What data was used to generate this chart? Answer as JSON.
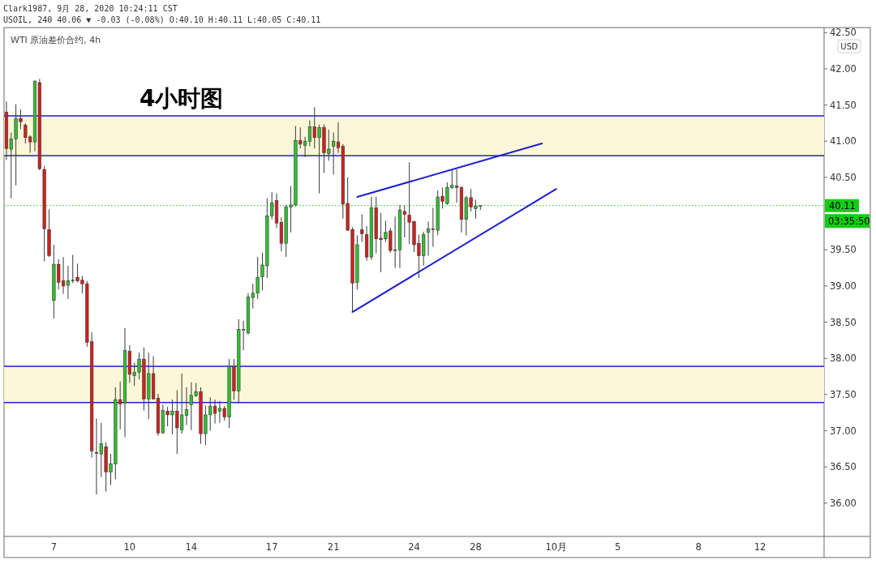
{
  "chart_data": {
    "type": "candlestick",
    "title": "4小时图",
    "subtitle": "WTI 原油差价合约, 4h",
    "ylabel": "USD",
    "annotations": [
      "Clark1987, 9月 28, 2020 10:24:11 CST",
      "USOIL, 240 40.06 ▼ -0.03 (-0.08%) O:40.10 H:40.11 L:40.05 C:40.11",
      "03:35:50"
    ],
    "categories": [
      null,
      null,
      null,
      null,
      null,
      null,
      null,
      null,
      null,
      null,
      "7",
      null,
      null,
      null,
      null,
      null,
      null,
      null,
      null,
      null,
      null,
      null,
      null,
      null,
      null,
      null,
      "10",
      null,
      null,
      null,
      null,
      null,
      null,
      null,
      null,
      null,
      null,
      null,
      null,
      "14",
      null,
      null,
      null,
      null,
      null,
      null,
      null,
      null,
      null,
      null,
      null,
      null,
      null,
      null,
      null,
      null,
      "17",
      null,
      null,
      null,
      null,
      null,
      null,
      null,
      null,
      null,
      null,
      null,
      null,
      "21",
      null,
      null,
      null,
      null,
      null,
      null,
      null,
      null,
      null,
      null,
      null,
      null,
      null,
      null,
      null,
      null,
      "24",
      null,
      null,
      null,
      null,
      null,
      null,
      null,
      null,
      null,
      null,
      null,
      null,
      "28",
      null,
      null,
      null,
      null,
      null,
      null,
      null,
      null,
      null,
      null,
      null,
      null,
      null,
      null,
      null,
      null,
      "10月",
      null,
      null,
      null,
      null,
      null,
      null,
      null,
      null,
      null,
      null,
      null,
      null,
      "5",
      null,
      null,
      null,
      null,
      null,
      null,
      null,
      null,
      null,
      null,
      null,
      null,
      null,
      null,
      null,
      null,
      "8",
      null,
      null,
      null,
      null,
      null,
      null,
      null,
      null,
      null,
      null,
      null,
      null,
      "12",
      null,
      null,
      null,
      null,
      null,
      null,
      null,
      null,
      null,
      null,
      null,
      null,
      null
    ],
    "ohlc": [
      [
        41.4,
        41.55,
        40.74,
        40.9
      ],
      [
        40.89,
        41.12,
        40.21,
        41.03
      ],
      [
        41.03,
        41.51,
        40.39,
        41.31
      ],
      [
        41.31,
        41.44,
        41.17,
        41.27
      ],
      [
        41.22,
        41.25,
        40.97,
        41.05
      ],
      [
        41.06,
        41.08,
        40.84,
        40.99
      ],
      [
        40.99,
        41.84,
        40.86,
        41.83
      ],
      [
        41.81,
        41.86,
        40.6,
        40.62
      ],
      [
        40.61,
        40.66,
        39.34,
        39.79
      ],
      [
        39.78,
        40.06,
        39.4,
        39.42
      ],
      [
        38.8,
        39.57,
        38.55,
        39.3
      ],
      [
        39.3,
        39.37,
        38.95,
        39.05
      ],
      [
        39.07,
        39.4,
        38.89,
        39.0
      ],
      [
        39.01,
        39.28,
        38.82,
        39.07
      ],
      [
        39.07,
        39.43,
        39.04,
        39.08
      ],
      [
        39.12,
        39.31,
        39.05,
        39.07
      ],
      [
        39.08,
        39.14,
        38.9,
        39.03
      ],
      [
        39.03,
        39.07,
        38.16,
        38.22
      ],
      [
        38.23,
        38.36,
        36.63,
        36.72
      ],
      [
        36.7,
        37.17,
        36.12,
        36.69
      ],
      [
        36.68,
        37.11,
        36.36,
        36.82
      ],
      [
        36.78,
        36.84,
        36.16,
        36.43
      ],
      [
        36.43,
        36.68,
        36.25,
        36.54
      ],
      [
        36.54,
        37.6,
        36.33,
        37.43
      ],
      [
        37.43,
        37.68,
        37.02,
        37.37
      ],
      [
        37.38,
        38.42,
        36.91,
        38.11
      ],
      [
        38.1,
        38.18,
        37.66,
        37.78
      ],
      [
        37.76,
        37.94,
        37.62,
        37.81
      ],
      [
        37.81,
        38.08,
        37.71,
        37.99
      ],
      [
        37.99,
        38.15,
        37.28,
        37.44
      ],
      [
        37.44,
        38.08,
        37.16,
        37.79
      ],
      [
        37.79,
        38.03,
        37.43,
        37.44
      ],
      [
        37.45,
        37.51,
        36.93,
        36.97
      ],
      [
        36.97,
        37.36,
        36.96,
        37.28
      ],
      [
        37.27,
        37.33,
        37.06,
        37.22
      ],
      [
        37.22,
        37.43,
        36.95,
        37.27
      ],
      [
        37.27,
        37.56,
        36.68,
        37.04
      ],
      [
        37.01,
        37.79,
        36.96,
        37.22
      ],
      [
        37.21,
        37.6,
        37.08,
        37.29
      ],
      [
        37.36,
        37.67,
        37.01,
        37.49
      ],
      [
        37.48,
        37.66,
        37.47,
        37.54
      ],
      [
        37.54,
        37.6,
        36.82,
        36.96
      ],
      [
        36.96,
        37.35,
        36.8,
        37.22
      ],
      [
        37.22,
        37.46,
        37.0,
        37.34
      ],
      [
        37.34,
        37.43,
        37.1,
        37.24
      ],
      [
        37.27,
        37.41,
        37.11,
        37.31
      ],
      [
        37.31,
        37.34,
        37.14,
        37.19
      ],
      [
        37.19,
        37.99,
        37.04,
        37.89
      ],
      [
        37.89,
        37.99,
        37.43,
        37.55
      ],
      [
        37.55,
        38.54,
        37.38,
        38.4
      ],
      [
        38.39,
        38.52,
        38.11,
        38.4
      ],
      [
        38.35,
        38.9,
        38.33,
        38.85
      ],
      [
        38.84,
        39.03,
        38.69,
        38.9
      ],
      [
        38.9,
        39.4,
        38.82,
        39.12
      ],
      [
        39.13,
        39.46,
        38.94,
        39.29
      ],
      [
        39.28,
        40.21,
        39.11,
        39.97
      ],
      [
        39.97,
        40.3,
        39.92,
        40.15
      ],
      [
        40.18,
        40.28,
        39.8,
        39.87
      ],
      [
        39.88,
        39.95,
        39.48,
        39.59
      ],
      [
        39.59,
        40.12,
        39.4,
        40.09
      ],
      [
        40.09,
        40.38,
        39.74,
        40.12
      ],
      [
        40.12,
        41.21,
        40.1,
        41.01
      ],
      [
        41.01,
        41.19,
        40.9,
        40.96
      ],
      [
        40.94,
        41.06,
        40.78,
        41.0
      ],
      [
        41.0,
        41.29,
        40.93,
        41.2
      ],
      [
        41.2,
        41.47,
        40.9,
        41.05
      ],
      [
        41.05,
        41.23,
        40.28,
        41.19
      ],
      [
        41.19,
        41.23,
        40.56,
        40.84
      ],
      [
        40.83,
        41.16,
        40.73,
        40.89
      ],
      [
        40.93,
        41.12,
        40.54,
        41.0
      ],
      [
        40.99,
        41.26,
        40.84,
        40.91
      ],
      [
        40.93,
        40.96,
        39.93,
        40.13
      ],
      [
        40.14,
        40.5,
        39.76,
        39.77
      ],
      [
        39.78,
        39.81,
        38.64,
        39.04
      ],
      [
        39.05,
        39.7,
        38.95,
        39.57
      ],
      [
        39.78,
        39.99,
        39.61,
        39.72
      ],
      [
        39.71,
        39.83,
        39.35,
        39.4
      ],
      [
        39.4,
        40.23,
        39.36,
        40.08
      ],
      [
        40.08,
        40.23,
        39.45,
        39.65
      ],
      [
        39.66,
        40.01,
        39.19,
        39.64
      ],
      [
        39.65,
        39.9,
        39.61,
        39.74
      ],
      [
        39.76,
        39.8,
        39.46,
        39.49
      ],
      [
        39.5,
        39.96,
        39.25,
        39.49
      ],
      [
        39.5,
        40.12,
        39.25,
        40.05
      ],
      [
        40.03,
        40.11,
        39.67,
        39.99
      ],
      [
        39.98,
        40.71,
        39.58,
        39.88
      ],
      [
        39.89,
        39.9,
        39.47,
        39.57
      ],
      [
        39.59,
        39.71,
        39.11,
        39.42
      ],
      [
        39.42,
        39.75,
        39.28,
        39.71
      ],
      [
        39.74,
        39.89,
        39.42,
        39.79
      ],
      [
        39.79,
        40.08,
        39.54,
        39.78
      ],
      [
        39.77,
        40.32,
        39.7,
        40.23
      ],
      [
        40.24,
        40.36,
        40.07,
        40.17
      ],
      [
        40.14,
        40.43,
        40.12,
        40.36
      ],
      [
        40.36,
        40.61,
        40.34,
        40.39
      ],
      [
        40.38,
        40.61,
        40.15,
        40.36
      ],
      [
        40.36,
        40.38,
        39.74,
        39.92
      ],
      [
        39.92,
        40.24,
        39.7,
        40.22
      ],
      [
        40.22,
        40.34,
        40.03,
        40.09
      ],
      [
        40.07,
        40.19,
        39.93,
        40.1
      ],
      [
        40.1,
        40.11,
        40.05,
        40.11
      ],
      null,
      null,
      null,
      null,
      null,
      null,
      null,
      null,
      null,
      null,
      null,
      null,
      null,
      null,
      null,
      null,
      null,
      null,
      null,
      null,
      null,
      null,
      null,
      null,
      null,
      null,
      null,
      null,
      null,
      null,
      null,
      null,
      null,
      null,
      null,
      null,
      null,
      null,
      null,
      null,
      null,
      null,
      null,
      null,
      null,
      null,
      null,
      null,
      null,
      null,
      null,
      null,
      null,
      null,
      null,
      null,
      null,
      null,
      null,
      null,
      null,
      null,
      null,
      null,
      null,
      null,
      null,
      null,
      null,
      null,
      null,
      null
    ],
    "ylim": [
      35.54,
      42.57
    ],
    "yticks": [
      {
        "value": 36,
        "label": "36.00"
      },
      {
        "value": 36.5,
        "label": "36.50"
      },
      {
        "value": 37,
        "label": "37.00"
      },
      {
        "value": 37.5,
        "label": "37.50"
      },
      {
        "value": 38,
        "label": "38.00"
      },
      {
        "value": 38.5,
        "label": "38.50"
      },
      {
        "value": 39,
        "label": "39.00"
      },
      {
        "value": 39.5,
        "label": "39.50"
      },
      {
        "value": 40.5,
        "label": "40.50"
      },
      {
        "value": 41,
        "label": "41.00"
      },
      {
        "value": 41.5,
        "label": "41.50"
      },
      {
        "value": 42,
        "label": "42.00"
      },
      {
        "value": 42.5,
        "label": "42.50"
      }
    ],
    "series": [
      {
        "type": "line",
        "color": "#1e1ed2",
        "values": [
          null,
          null,
          null,
          null,
          null,
          null,
          null,
          null,
          null,
          null,
          null,
          null,
          null,
          null,
          null,
          null,
          null,
          null,
          null,
          null,
          null,
          null,
          null,
          null,
          null,
          null,
          null,
          null,
          null,
          null,
          null,
          null,
          null,
          null,
          null,
          null,
          null,
          null,
          null,
          null,
          null,
          null,
          null,
          null,
          null,
          null,
          null,
          null,
          null,
          null,
          null,
          null,
          null,
          null,
          null,
          null,
          null,
          null,
          null,
          null,
          null,
          null,
          null,
          null,
          null,
          null,
          null,
          null,
          null,
          null,
          null,
          null,
          null,
          null,
          40.23,
          null,
          null,
          null,
          null,
          null,
          null,
          null,
          null,
          null,
          null,
          null,
          null,
          null,
          null,
          null,
          null,
          null,
          null,
          null,
          null,
          null,
          null,
          null,
          null,
          null,
          null,
          null,
          null,
          null,
          null,
          null,
          null,
          null,
          null,
          null,
          null,
          null,
          null,
          40.97,
          null,
          null,
          null,
          null,
          null,
          null,
          null,
          null,
          null,
          null,
          null,
          null,
          null,
          null,
          null,
          null,
          null,
          null,
          null,
          null,
          null,
          null,
          null,
          null,
          null,
          null,
          null,
          null,
          null,
          null,
          null,
          null,
          null,
          null,
          null,
          null,
          null,
          null,
          null,
          null,
          null,
          null,
          null,
          null,
          null,
          null,
          null,
          null,
          null,
          null,
          null,
          null,
          null,
          null,
          null,
          null,
          null,
          null,
          null
        ]
      },
      {
        "type": "line",
        "color": "#1e1ed2",
        "values": [
          null,
          null,
          null,
          null,
          null,
          null,
          null,
          null,
          null,
          null,
          null,
          null,
          null,
          null,
          null,
          null,
          null,
          null,
          null,
          null,
          null,
          null,
          null,
          null,
          null,
          null,
          null,
          null,
          null,
          null,
          null,
          null,
          null,
          null,
          null,
          null,
          null,
          null,
          null,
          null,
          null,
          null,
          null,
          null,
          null,
          null,
          null,
          null,
          null,
          null,
          null,
          null,
          null,
          null,
          null,
          null,
          null,
          null,
          null,
          null,
          null,
          null,
          null,
          null,
          null,
          null,
          null,
          null,
          null,
          null,
          null,
          null,
          null,
          38.64,
          null,
          null,
          null,
          null,
          null,
          null,
          null,
          null,
          null,
          null,
          null,
          null,
          null,
          null,
          null,
          null,
          null,
          null,
          null,
          null,
          null,
          null,
          null,
          null,
          null,
          null,
          null,
          null,
          null,
          null,
          null,
          null,
          null,
          null,
          null,
          null,
          null,
          null,
          null,
          null,
          null,
          null,
          40.34,
          null,
          null,
          null,
          null,
          null,
          null,
          null,
          null,
          null,
          null,
          null,
          null,
          null,
          null,
          null,
          null,
          null,
          null,
          null,
          null,
          null,
          null,
          null,
          null,
          null,
          null,
          null,
          null,
          null,
          null,
          null,
          null,
          null,
          null,
          null,
          null,
          null,
          null,
          null,
          null,
          null,
          null,
          null,
          null,
          null,
          null,
          null,
          null,
          null,
          null,
          null,
          null,
          null,
          null,
          null,
          null
        ]
      }
    ],
    "ref_lines": [
      {
        "axis": "y",
        "value": 40.11,
        "label": "40.11",
        "color": "#14cc14",
        "line_style": "dotted"
      }
    ],
    "bands": [
      {
        "axis": "y",
        "from": 40.8,
        "to": 41.35,
        "color": "#fcf7d9"
      },
      {
        "axis": "y",
        "from": 37.39,
        "to": 37.89,
        "color": "#fcf7d9"
      }
    ]
  }
}
